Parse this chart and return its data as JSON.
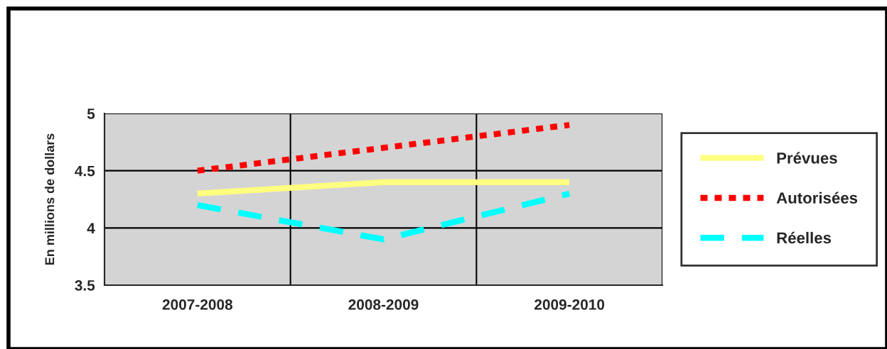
{
  "chart_data": {
    "type": "line",
    "ylabel": "En millions de dollars",
    "categories": [
      "2007-2008",
      "2008-2009",
      "2009-2010"
    ],
    "series": [
      {
        "name": "Prévues",
        "color": "#ffff80",
        "values": [
          4.3,
          4.4,
          4.4
        ],
        "line_style": "solid"
      },
      {
        "name": "Autorisées",
        "color": "#ff0000",
        "values": [
          4.5,
          4.7,
          4.9
        ],
        "line_style": "dotted"
      },
      {
        "name": "Réelles",
        "color": "#00ffff",
        "values": [
          4.2,
          3.9,
          4.3
        ],
        "line_style": "dashed"
      }
    ],
    "ylim": [
      3.5,
      5
    ],
    "yticks": [
      3.5,
      4,
      4.5,
      5
    ],
    "grid": true,
    "legend": "right",
    "marker": "none"
  }
}
